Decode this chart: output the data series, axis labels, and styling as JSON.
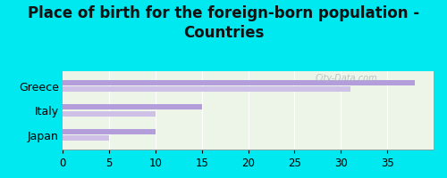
{
  "title": "Place of birth for the foreign-born population -\nCountries",
  "categories": [
    "Japan",
    "Italy",
    "Greece"
  ],
  "bars_primary": [
    10.0,
    15.0,
    38.0
  ],
  "bars_secondary": [
    5.0,
    10.0,
    31.0
  ],
  "bar_color_primary": "#b39ddb",
  "bar_color_secondary": "#cfc0e8",
  "background_color": "#00e8f0",
  "chart_bg": "#edf5e8",
  "xlim": [
    0,
    40
  ],
  "xticks": [
    0,
    5,
    10,
    15,
    20,
    25,
    30,
    35
  ],
  "title_fontsize": 12,
  "tick_fontsize": 8.5,
  "label_fontsize": 9,
  "watermark": "City-Data.com",
  "bar_height": 0.22,
  "bar_spacing": 0.27
}
